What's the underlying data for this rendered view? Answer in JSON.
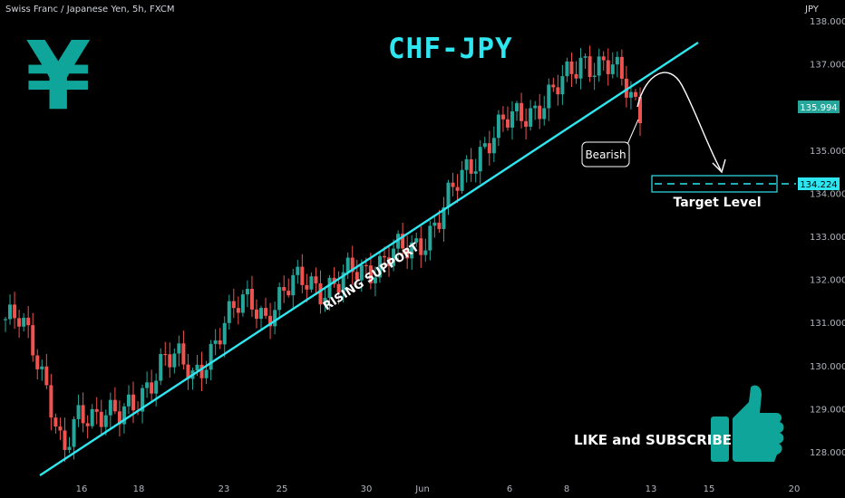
{
  "header": {
    "symbol_label": "Swiss Franc / Japanese Yen, 5h, FXCM",
    "unit": "JPY"
  },
  "title": "CHF-JPY",
  "logo_glyph": "¥",
  "cta": "LIKE and SUBSCRIBE",
  "colors": {
    "up": "#26a69a",
    "down": "#ef5350",
    "line": "#2ee6f0",
    "bg": "#000000"
  },
  "annotations": {
    "support": "RISING SUPPORT",
    "bearish": "Bearish",
    "target": "Target Level"
  },
  "chart_data": {
    "type": "candlestick",
    "y_ticks": [
      "128.000",
      "129.000",
      "130.000",
      "131.000",
      "132.000",
      "133.000",
      "134.000",
      "135.000",
      "137.000",
      "138.000"
    ],
    "ylim": [
      127.5,
      138.3
    ],
    "x_ticks": [
      "16",
      "18",
      "23",
      "25",
      "30",
      "Jun",
      "6",
      "8",
      "13",
      "15",
      "20"
    ],
    "last_price": "135.994",
    "target_price": "134.224",
    "close_path": [
      131.1,
      131.0,
      130.4,
      129.5,
      127.9,
      128.7,
      128.9,
      129.1,
      128.8,
      129.0,
      129.7,
      130.3,
      130.1,
      129.7,
      130.3,
      130.9,
      131.3,
      131.6,
      131.2,
      131.5,
      131.9,
      132.1,
      131.8,
      131.8,
      132.2,
      132.3,
      132.4,
      132.6,
      132.7,
      133.0,
      133.4,
      134.0,
      134.6,
      135.1,
      135.4,
      135.7,
      135.9,
      136.1,
      136.3,
      136.7,
      137.2,
      137.0,
      136.9,
      136.5,
      136.0
    ]
  }
}
